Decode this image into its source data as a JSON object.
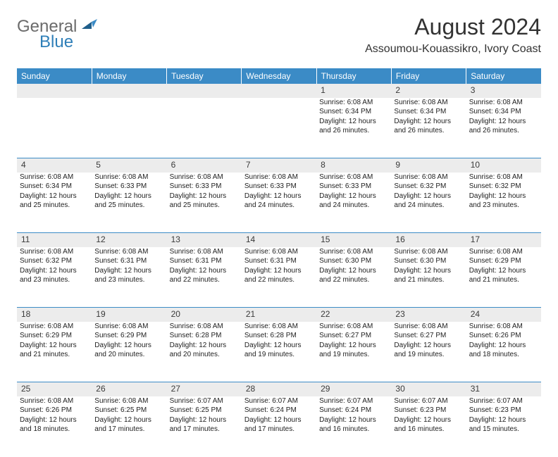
{
  "logo": {
    "general": "General",
    "blue": "Blue"
  },
  "header": {
    "title": "August 2024",
    "location": "Assoumou-Kouassikro, Ivory Coast"
  },
  "colors": {
    "header_bar": "#3b8bc6",
    "daynum_bg": "#ececec",
    "rule": "#3b8bc6",
    "text": "#222222",
    "logo_gray": "#6b6b6b",
    "logo_blue": "#2f7fb8"
  },
  "weekdays": [
    "Sunday",
    "Monday",
    "Tuesday",
    "Wednesday",
    "Thursday",
    "Friday",
    "Saturday"
  ],
  "weeks": [
    [
      null,
      null,
      null,
      null,
      {
        "n": "1",
        "sr": "Sunrise: 6:08 AM",
        "ss": "Sunset: 6:34 PM",
        "d1": "Daylight: 12 hours",
        "d2": "and 26 minutes."
      },
      {
        "n": "2",
        "sr": "Sunrise: 6:08 AM",
        "ss": "Sunset: 6:34 PM",
        "d1": "Daylight: 12 hours",
        "d2": "and 26 minutes."
      },
      {
        "n": "3",
        "sr": "Sunrise: 6:08 AM",
        "ss": "Sunset: 6:34 PM",
        "d1": "Daylight: 12 hours",
        "d2": "and 26 minutes."
      }
    ],
    [
      {
        "n": "4",
        "sr": "Sunrise: 6:08 AM",
        "ss": "Sunset: 6:34 PM",
        "d1": "Daylight: 12 hours",
        "d2": "and 25 minutes."
      },
      {
        "n": "5",
        "sr": "Sunrise: 6:08 AM",
        "ss": "Sunset: 6:33 PM",
        "d1": "Daylight: 12 hours",
        "d2": "and 25 minutes."
      },
      {
        "n": "6",
        "sr": "Sunrise: 6:08 AM",
        "ss": "Sunset: 6:33 PM",
        "d1": "Daylight: 12 hours",
        "d2": "and 25 minutes."
      },
      {
        "n": "7",
        "sr": "Sunrise: 6:08 AM",
        "ss": "Sunset: 6:33 PM",
        "d1": "Daylight: 12 hours",
        "d2": "and 24 minutes."
      },
      {
        "n": "8",
        "sr": "Sunrise: 6:08 AM",
        "ss": "Sunset: 6:33 PM",
        "d1": "Daylight: 12 hours",
        "d2": "and 24 minutes."
      },
      {
        "n": "9",
        "sr": "Sunrise: 6:08 AM",
        "ss": "Sunset: 6:32 PM",
        "d1": "Daylight: 12 hours",
        "d2": "and 24 minutes."
      },
      {
        "n": "10",
        "sr": "Sunrise: 6:08 AM",
        "ss": "Sunset: 6:32 PM",
        "d1": "Daylight: 12 hours",
        "d2": "and 23 minutes."
      }
    ],
    [
      {
        "n": "11",
        "sr": "Sunrise: 6:08 AM",
        "ss": "Sunset: 6:32 PM",
        "d1": "Daylight: 12 hours",
        "d2": "and 23 minutes."
      },
      {
        "n": "12",
        "sr": "Sunrise: 6:08 AM",
        "ss": "Sunset: 6:31 PM",
        "d1": "Daylight: 12 hours",
        "d2": "and 23 minutes."
      },
      {
        "n": "13",
        "sr": "Sunrise: 6:08 AM",
        "ss": "Sunset: 6:31 PM",
        "d1": "Daylight: 12 hours",
        "d2": "and 22 minutes."
      },
      {
        "n": "14",
        "sr": "Sunrise: 6:08 AM",
        "ss": "Sunset: 6:31 PM",
        "d1": "Daylight: 12 hours",
        "d2": "and 22 minutes."
      },
      {
        "n": "15",
        "sr": "Sunrise: 6:08 AM",
        "ss": "Sunset: 6:30 PM",
        "d1": "Daylight: 12 hours",
        "d2": "and 22 minutes."
      },
      {
        "n": "16",
        "sr": "Sunrise: 6:08 AM",
        "ss": "Sunset: 6:30 PM",
        "d1": "Daylight: 12 hours",
        "d2": "and 21 minutes."
      },
      {
        "n": "17",
        "sr": "Sunrise: 6:08 AM",
        "ss": "Sunset: 6:29 PM",
        "d1": "Daylight: 12 hours",
        "d2": "and 21 minutes."
      }
    ],
    [
      {
        "n": "18",
        "sr": "Sunrise: 6:08 AM",
        "ss": "Sunset: 6:29 PM",
        "d1": "Daylight: 12 hours",
        "d2": "and 21 minutes."
      },
      {
        "n": "19",
        "sr": "Sunrise: 6:08 AM",
        "ss": "Sunset: 6:29 PM",
        "d1": "Daylight: 12 hours",
        "d2": "and 20 minutes."
      },
      {
        "n": "20",
        "sr": "Sunrise: 6:08 AM",
        "ss": "Sunset: 6:28 PM",
        "d1": "Daylight: 12 hours",
        "d2": "and 20 minutes."
      },
      {
        "n": "21",
        "sr": "Sunrise: 6:08 AM",
        "ss": "Sunset: 6:28 PM",
        "d1": "Daylight: 12 hours",
        "d2": "and 19 minutes."
      },
      {
        "n": "22",
        "sr": "Sunrise: 6:08 AM",
        "ss": "Sunset: 6:27 PM",
        "d1": "Daylight: 12 hours",
        "d2": "and 19 minutes."
      },
      {
        "n": "23",
        "sr": "Sunrise: 6:08 AM",
        "ss": "Sunset: 6:27 PM",
        "d1": "Daylight: 12 hours",
        "d2": "and 19 minutes."
      },
      {
        "n": "24",
        "sr": "Sunrise: 6:08 AM",
        "ss": "Sunset: 6:26 PM",
        "d1": "Daylight: 12 hours",
        "d2": "and 18 minutes."
      }
    ],
    [
      {
        "n": "25",
        "sr": "Sunrise: 6:08 AM",
        "ss": "Sunset: 6:26 PM",
        "d1": "Daylight: 12 hours",
        "d2": "and 18 minutes."
      },
      {
        "n": "26",
        "sr": "Sunrise: 6:08 AM",
        "ss": "Sunset: 6:25 PM",
        "d1": "Daylight: 12 hours",
        "d2": "and 17 minutes."
      },
      {
        "n": "27",
        "sr": "Sunrise: 6:07 AM",
        "ss": "Sunset: 6:25 PM",
        "d1": "Daylight: 12 hours",
        "d2": "and 17 minutes."
      },
      {
        "n": "28",
        "sr": "Sunrise: 6:07 AM",
        "ss": "Sunset: 6:24 PM",
        "d1": "Daylight: 12 hours",
        "d2": "and 17 minutes."
      },
      {
        "n": "29",
        "sr": "Sunrise: 6:07 AM",
        "ss": "Sunset: 6:24 PM",
        "d1": "Daylight: 12 hours",
        "d2": "and 16 minutes."
      },
      {
        "n": "30",
        "sr": "Sunrise: 6:07 AM",
        "ss": "Sunset: 6:23 PM",
        "d1": "Daylight: 12 hours",
        "d2": "and 16 minutes."
      },
      {
        "n": "31",
        "sr": "Sunrise: 6:07 AM",
        "ss": "Sunset: 6:23 PM",
        "d1": "Daylight: 12 hours",
        "d2": "and 15 minutes."
      }
    ]
  ]
}
